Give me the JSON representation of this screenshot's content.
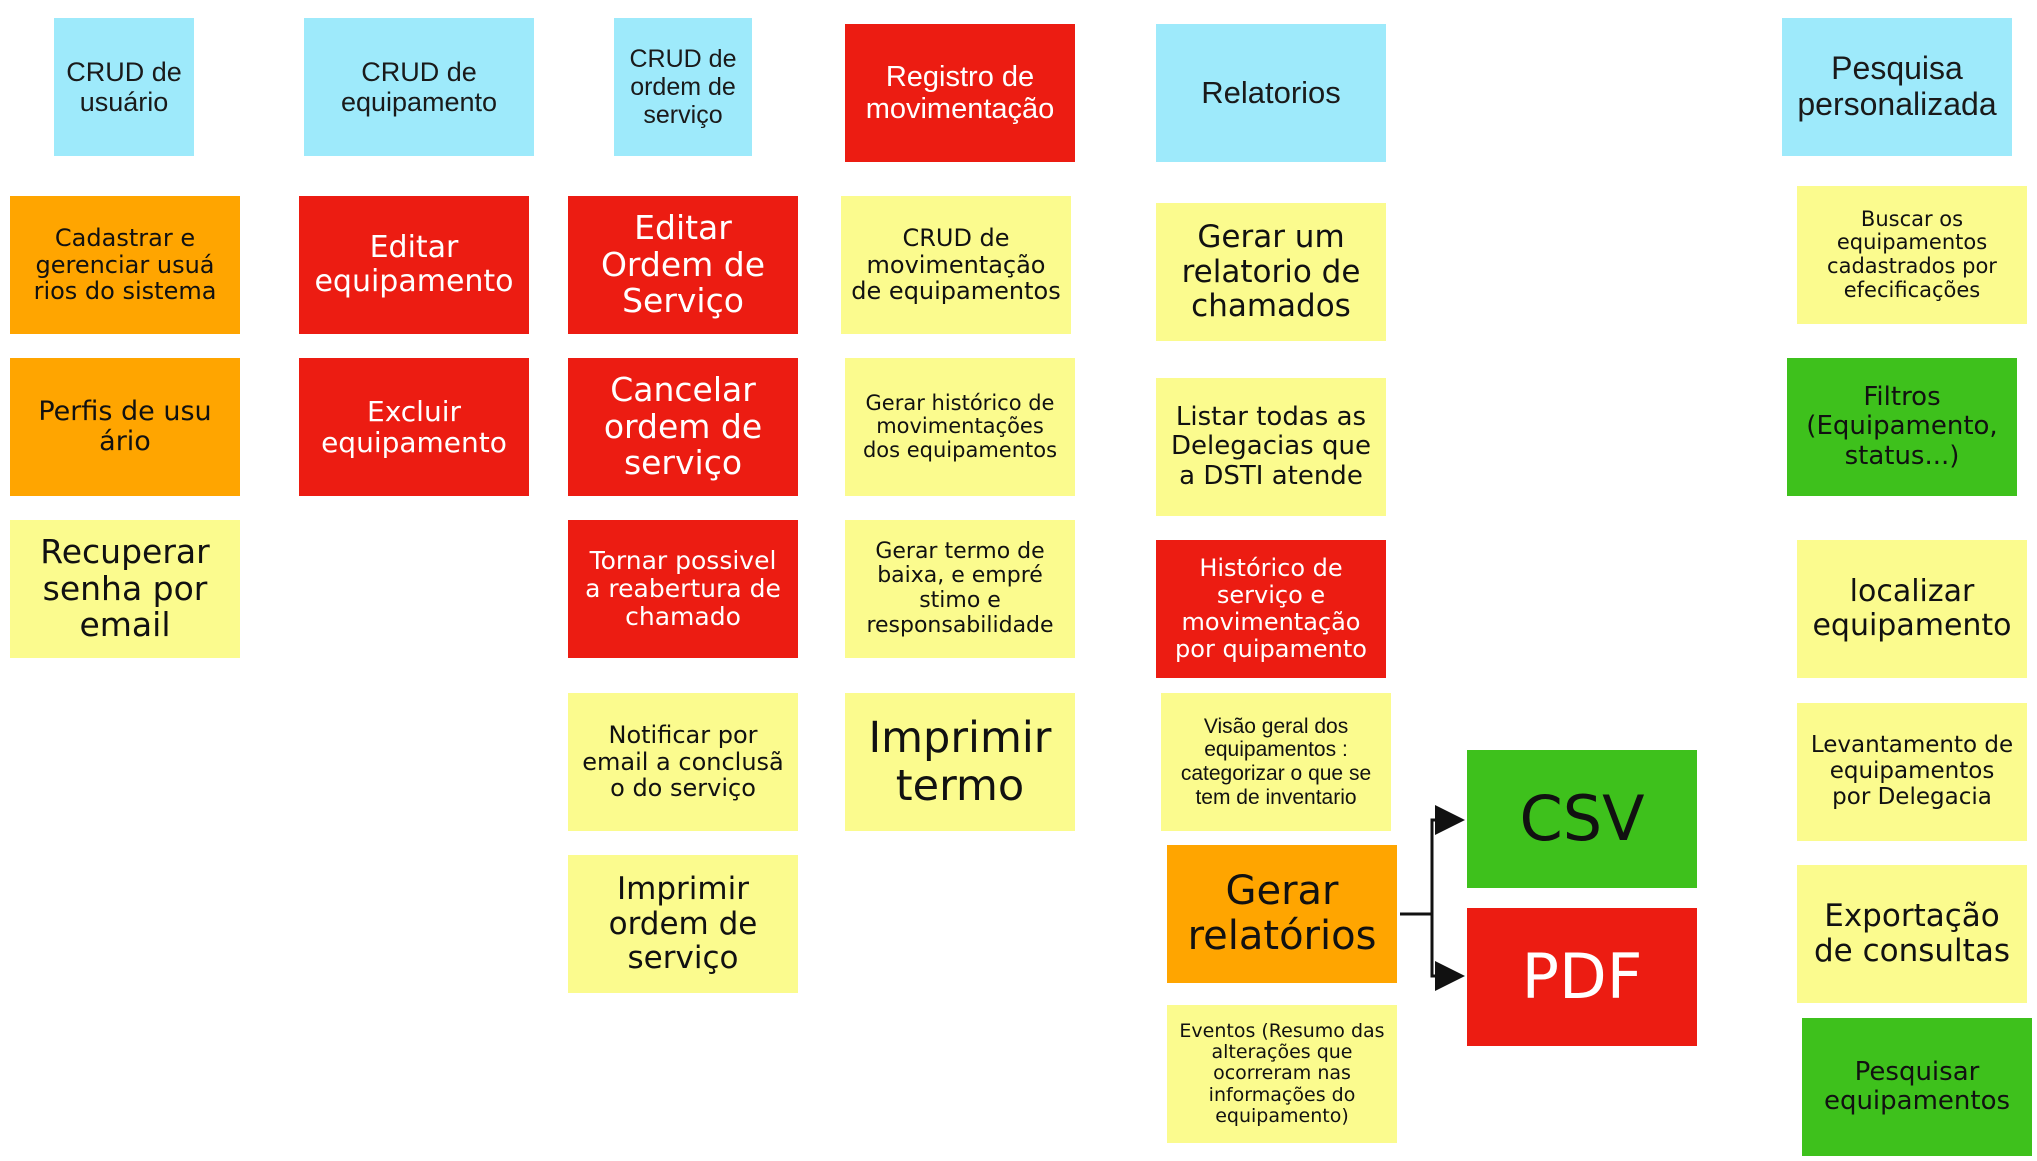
{
  "headers": {
    "crud_usuario": "CRUD de usuário",
    "crud_equipamento": "CRUD de equipamento",
    "crud_ordem": "CRUD de ordem de serviço",
    "registro_movimentacao": "Registro de movimentação",
    "relatorios": "Relatorios",
    "pesquisa": "Pesquisa personalizada"
  },
  "usuario": {
    "cadastrar": "Cadastrar e gerenciar usuá rios do sistema",
    "perfis": "Perfis de usu ário",
    "recuperar": "Recuperar senha por email"
  },
  "equipamento": {
    "editar": "Editar equipamento",
    "excluir": "Excluir equipamento"
  },
  "ordem": {
    "editar": "Editar Ordem de Serviço",
    "cancelar": "Cancelar ordem de serviço",
    "reabertura": "Tornar possivel a reabertura de chamado",
    "notificar": "Notificar por email a conclusã o do serviço",
    "imprimir": "Imprimir ordem de serviço"
  },
  "movimentacao": {
    "crud": "CRUD de movimentação de equipamentos",
    "historico": "Gerar histórico de movimentações dos equipamentos",
    "termo_baixa": "Gerar termo de baixa, e empré stimo e responsabilidade",
    "imprimir_termo": "Imprimir termo"
  },
  "relatorios": {
    "chamados": "Gerar um relatorio de chamados",
    "delegacias": "Listar todas as Delegacias que a DSTI atende",
    "historico_servico": "Histórico de serviço e movimentação por quipamento",
    "visao_geral": "Visão geral dos equipamentos : categorizar o que se tem de inventario",
    "gerar_relatorios": "Gerar relatórios",
    "eventos": "Eventos (Resumo das alterações que ocorreram nas informações do equipamento)",
    "csv": "CSV",
    "pdf": "PDF"
  },
  "pesquisa": {
    "buscar": "Buscar os equipamentos cadastrados por efecificações",
    "filtros": "Filtros (Equipamento, status...)",
    "localizar": "localizar equipamento",
    "levantamento": "Levantamento de equipamentos por Delegacia",
    "exportacao": "Exportação de consultas",
    "pesquisar": "Pesquisar equipamentos"
  }
}
